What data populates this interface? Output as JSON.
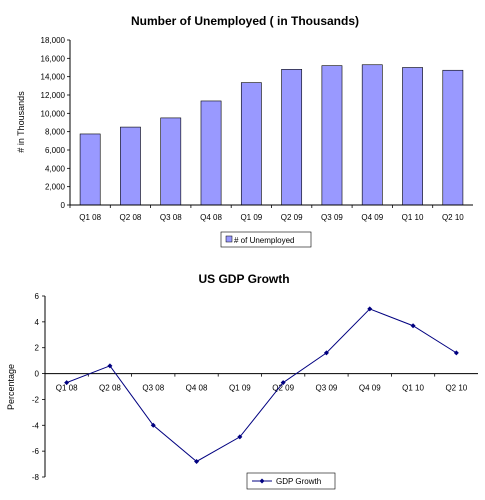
{
  "chart_data": [
    {
      "type": "bar",
      "title": "Number of Unemployed ( in Thousands)",
      "ylabel": "# in Thousands",
      "ylim": [
        0,
        18000
      ],
      "ytick_step": 2000,
      "ytick_labels": [
        "0",
        "2,000",
        "4,000",
        "6,000",
        "8,000",
        "10,000",
        "12,000",
        "14,000",
        "16,000",
        "18,000"
      ],
      "categories": [
        "Q1 08",
        "Q2 08",
        "Q3 08",
        "Q4 08",
        "Q1 09",
        "Q2 09",
        "Q3 09",
        "Q4 09",
        "Q1 10",
        "Q2 10"
      ],
      "series": [
        {
          "name": "# of Unemployed",
          "values": [
            7750,
            8500,
            9500,
            11350,
            13350,
            14800,
            15200,
            15300,
            15000,
            14700
          ]
        }
      ],
      "colors": {
        "bar_fill": "#9999ff",
        "bar_stroke": "#000000"
      },
      "legend": "bottom",
      "grid": false
    },
    {
      "type": "line",
      "title": "US GDP Growth",
      "ylabel": "Percentage",
      "ylim": [
        -8,
        6
      ],
      "ytick_step": 2,
      "ytick_labels": [
        "-8",
        "-6",
        "-4",
        "-2",
        "0",
        "2",
        "4",
        "6"
      ],
      "categories": [
        "Q1 08",
        "Q2 08",
        "Q3 08",
        "Q4 08",
        "Q1 09",
        "Q2 09",
        "Q3 09",
        "Q4 09",
        "Q1 10",
        "Q2 10"
      ],
      "series": [
        {
          "name": "GDP Growth",
          "values": [
            -0.7,
            0.6,
            -4.0,
            -6.8,
            -4.9,
            -0.7,
            1.6,
            5.0,
            3.7,
            1.6
          ]
        }
      ],
      "colors": {
        "line": "#000080",
        "marker": "#000080"
      },
      "legend": "bottom",
      "grid": false
    }
  ]
}
